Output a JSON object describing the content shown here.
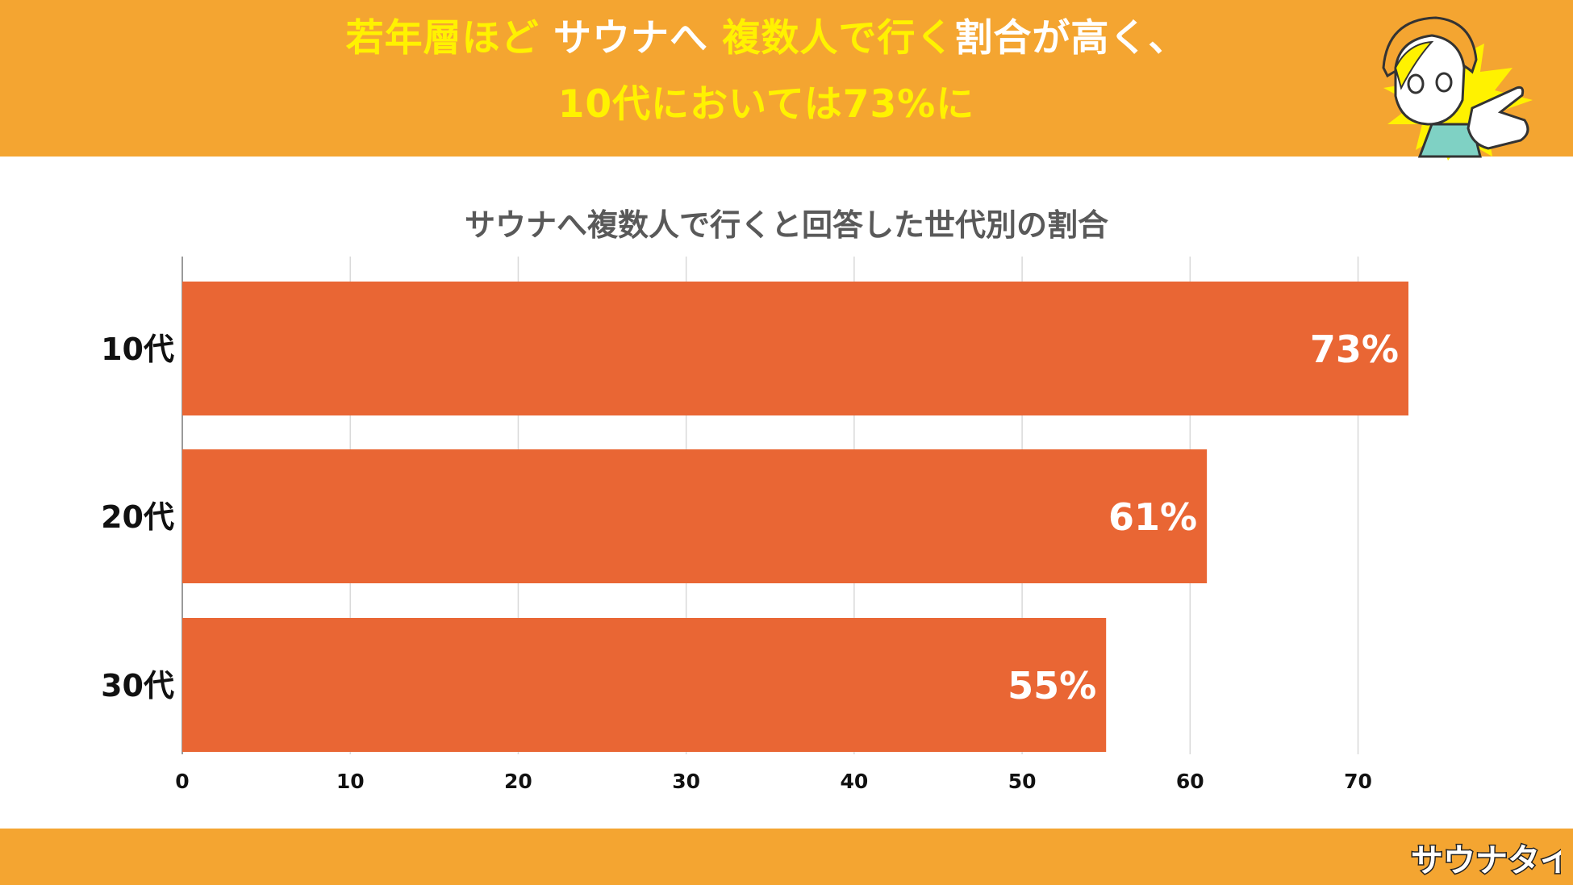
{
  "headline": {
    "line1": [
      {
        "text": "若年層ほど",
        "style": "highlight"
      },
      {
        "text": "サウナへ",
        "style": "white"
      },
      {
        "text": "複数人で行く",
        "style": "highlight"
      },
      {
        "text": "割合が高く、",
        "style": "white"
      }
    ],
    "line2": [
      {
        "text": "10代においては73%に",
        "style": "highlight"
      }
    ]
  },
  "colors": {
    "header_bg": "#f4a531",
    "highlight_text": "#fff200",
    "bar": "#e96634",
    "grid": "#d9d9d9",
    "title_text": "#595959"
  },
  "brand": {
    "name": "サウナタイチ"
  },
  "chart_data": {
    "type": "bar",
    "orientation": "horizontal",
    "title": "サウナへ複数人で行くと回答した世代別の割合",
    "categories": [
      "10代",
      "20代",
      "30代"
    ],
    "values": [
      73,
      61,
      55
    ],
    "data_labels": [
      "73%",
      "61%",
      "55%"
    ],
    "xlim": [
      0,
      73
    ],
    "xticks": [
      0,
      10,
      20,
      30,
      40,
      50,
      60,
      70
    ],
    "grid": "vertical",
    "legend": "none"
  }
}
